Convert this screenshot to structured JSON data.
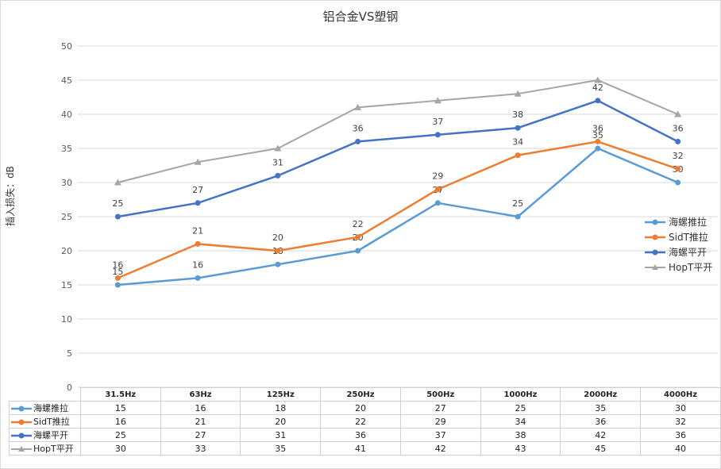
{
  "chart_data": {
    "type": "line",
    "title": "铝合金VS塑钢",
    "ylabel": "插入损失：dB",
    "xlabel": "",
    "ylim": [
      0,
      50
    ],
    "yticks": [
      0,
      5,
      10,
      15,
      20,
      25,
      30,
      35,
      40,
      45,
      50
    ],
    "grid": true,
    "legend_position": "right",
    "categories": [
      "31.5Hz",
      "63Hz",
      "125Hz",
      "250Hz",
      "500Hz",
      "1000Hz",
      "2000Hz",
      "4000Hz"
    ],
    "series": [
      {
        "name": "海螺推拉",
        "color": "#5b9bd5",
        "marker": "circle",
        "values": [
          15,
          16,
          18,
          20,
          27,
          25,
          35,
          30
        ],
        "labels": true
      },
      {
        "name": "SidT推拉",
        "color": "#ed7d31",
        "marker": "circle",
        "values": [
          16,
          21,
          20,
          22,
          29,
          34,
          36,
          32
        ],
        "labels": true
      },
      {
        "name": "海螺平开",
        "color": "#4472c4",
        "marker": "circle",
        "values": [
          25,
          27,
          31,
          36,
          37,
          38,
          42,
          36
        ],
        "labels": true
      },
      {
        "name": "HopT平开",
        "color": "#a5a5a5",
        "marker": "triangle",
        "values": [
          30,
          33,
          35,
          41,
          42,
          43,
          45,
          40
        ],
        "labels": false
      }
    ],
    "data_table": true
  }
}
